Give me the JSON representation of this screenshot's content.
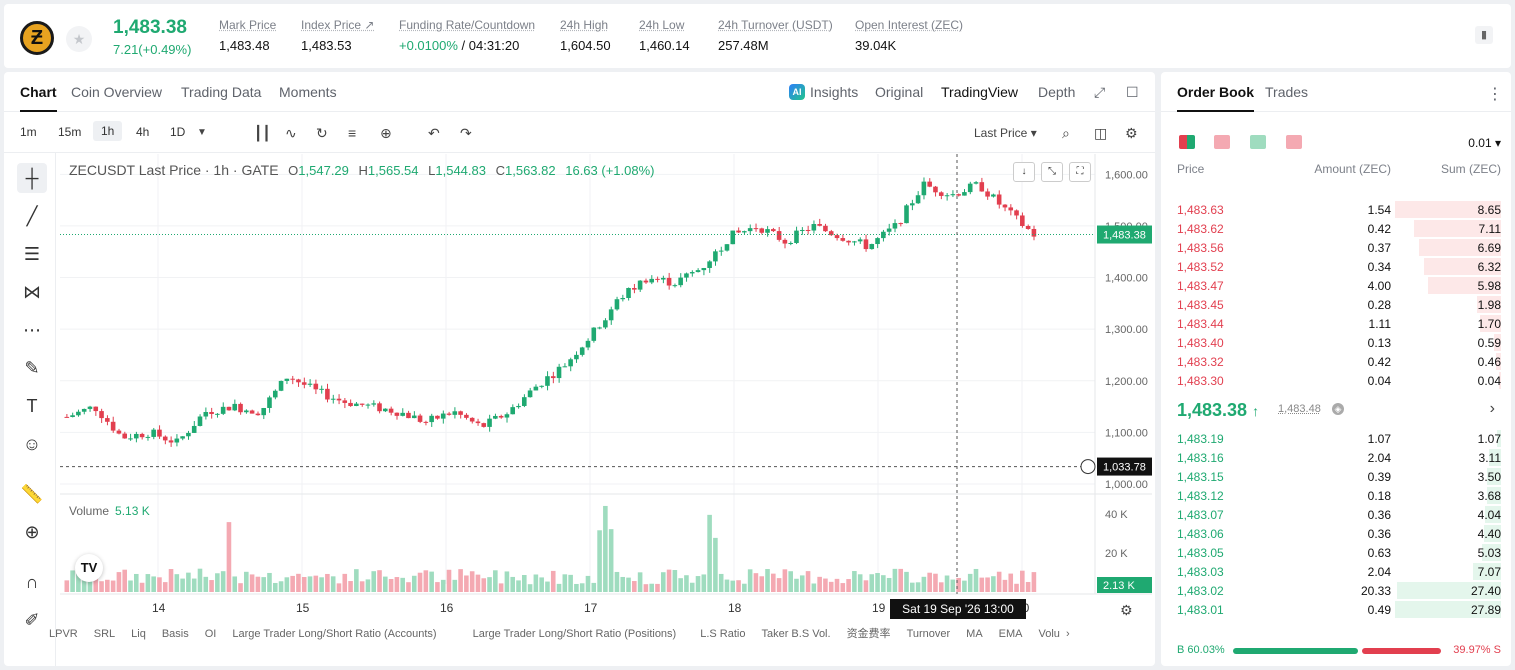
{
  "header": {
    "price": "1,483.38",
    "change": "7.21(+0.49%)",
    "stats": [
      {
        "label": "Mark Price",
        "value": "1,483.48"
      },
      {
        "label": "Index Price ↗",
        "value": "1,483.53"
      },
      {
        "label": "Funding Rate/Countdown",
        "value_green": "+0.0100%",
        "value": " / 04:31:20"
      },
      {
        "label": "24h High",
        "value": "1,604.50"
      },
      {
        "label": "24h Low",
        "value": "1,460.14"
      },
      {
        "label": "24h Turnover (USDT)",
        "value": "257.48M"
      },
      {
        "label": "Open Interest (ZEC)",
        "value": "39.04K"
      }
    ]
  },
  "chart_tabs": [
    "Chart",
    "Coin Overview",
    "Trading Data",
    "Moments"
  ],
  "chart_views": [
    "Insights",
    "Original",
    "TradingView",
    "Depth"
  ],
  "intervals": [
    "1m",
    "15m",
    "1h",
    "4h",
    "1D"
  ],
  "last_price_select": "Last Price",
  "legend": {
    "symbol": "ZECUSDT Last Price · 1h · GATE",
    "o_label": "O",
    "o": "1,547.29",
    "h_label": "H",
    "h": "1,565.54",
    "l_label": "L",
    "l": "1,544.83",
    "c_label": "C",
    "c": "1,563.82",
    "chg": "16.63 (+1.08%)"
  },
  "volume": {
    "label": "Volume",
    "value": "5.13 K"
  },
  "price_axis": [
    "1,600.00",
    "1,500.00",
    "1,400.00",
    "1,300.00",
    "1,200.00",
    "1,100.00",
    "1,000.00"
  ],
  "volume_axis": [
    "40 K",
    "20 K"
  ],
  "current_price_tag": "1,483.38",
  "crosshair_price_tag": "1,033.78",
  "volume_tag": "2.13 K",
  "date_axis": [
    "14",
    "15",
    "16",
    "17",
    "18",
    "19",
    "20"
  ],
  "crosshair_time": "Sat 19 Sep '26   13:00",
  "bottom_indicators": [
    "LPVR",
    "SRL",
    "Liq",
    "Basis",
    "OI",
    "Large Trader Long/Short Ratio (Accounts)",
    "Large Trader Long/Short Ratio (Positions)",
    "L.S Ratio",
    "Taker B.S Vol.",
    "资金费率",
    "Turnover",
    "MA",
    "EMA",
    "Volu"
  ],
  "colors": {
    "up": "#1fa971",
    "down": "#e23f4f",
    "up_vol": "#9fdcbf",
    "down_vol": "#f4a9b2"
  },
  "chart_data": {
    "type": "candlestick",
    "interval": "1h",
    "ylim": [
      1000,
      1620
    ],
    "ohlc_checkpoints_close": [
      1130,
      1150,
      1090,
      1100,
      1080,
      1140,
      1150,
      1140,
      1210,
      1180,
      1160,
      1150,
      1140,
      1120,
      1140,
      1110,
      1140,
      1190,
      1230,
      1290,
      1360,
      1400,
      1390,
      1420,
      1480,
      1500,
      1470,
      1500,
      1480,
      1460,
      1500,
      1580,
      1560,
      1580,
      1530,
      1483
    ]
  },
  "orderbook": {
    "tabs": [
      "Order Book",
      "Trades"
    ],
    "tick": "0.01",
    "headers": {
      "price": "Price",
      "amount": "Amount (ZEC)",
      "sum": "Sum (ZEC)"
    },
    "asks": [
      {
        "price": "1,483.63",
        "amount": "1.54",
        "sum": "8.65",
        "depth": 1.0
      },
      {
        "price": "1,483.62",
        "amount": "0.42",
        "sum": "7.11",
        "depth": 0.82
      },
      {
        "price": "1,483.56",
        "amount": "0.37",
        "sum": "6.69",
        "depth": 0.77
      },
      {
        "price": "1,483.52",
        "amount": "0.34",
        "sum": "6.32",
        "depth": 0.73
      },
      {
        "price": "1,483.47",
        "amount": "4.00",
        "sum": "5.98",
        "depth": 0.69
      },
      {
        "price": "1,483.45",
        "amount": "0.28",
        "sum": "1.98",
        "depth": 0.23
      },
      {
        "price": "1,483.44",
        "amount": "1.11",
        "sum": "1.70",
        "depth": 0.2
      },
      {
        "price": "1,483.40",
        "amount": "0.13",
        "sum": "0.59",
        "depth": 0.07
      },
      {
        "price": "1,483.32",
        "amount": "0.42",
        "sum": "0.46",
        "depth": 0.05
      },
      {
        "price": "1,483.30",
        "amount": "0.04",
        "sum": "0.04",
        "depth": 0.01
      }
    ],
    "mid_price": "1,483.38",
    "mid_sub": "1,483.48",
    "bids": [
      {
        "price": "1,483.19",
        "amount": "1.07",
        "sum": "1.07",
        "depth": 0.04
      },
      {
        "price": "1,483.16",
        "amount": "2.04",
        "sum": "3.11",
        "depth": 0.11
      },
      {
        "price": "1,483.15",
        "amount": "0.39",
        "sum": "3.50",
        "depth": 0.13
      },
      {
        "price": "1,483.12",
        "amount": "0.18",
        "sum": "3.68",
        "depth": 0.13
      },
      {
        "price": "1,483.07",
        "amount": "0.36",
        "sum": "4.04",
        "depth": 0.15
      },
      {
        "price": "1,483.06",
        "amount": "0.36",
        "sum": "4.40",
        "depth": 0.16
      },
      {
        "price": "1,483.05",
        "amount": "0.63",
        "sum": "5.03",
        "depth": 0.18
      },
      {
        "price": "1,483.03",
        "amount": "2.04",
        "sum": "7.07",
        "depth": 0.26
      },
      {
        "price": "1,483.02",
        "amount": "20.33",
        "sum": "27.40",
        "depth": 0.98
      },
      {
        "price": "1,483.01",
        "amount": "0.49",
        "sum": "27.89",
        "depth": 1.0
      }
    ],
    "buy_ratio": "60.03%",
    "sell_ratio": "39.97%",
    "buy_label": "B",
    "sell_label": "S",
    "buy_frac": 0.6003
  }
}
